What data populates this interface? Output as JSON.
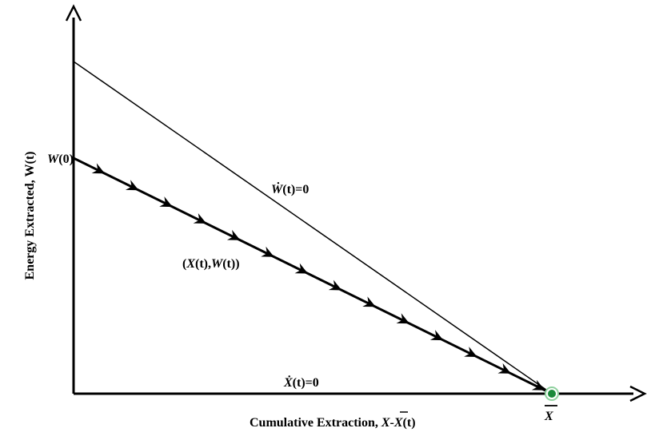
{
  "axes": {
    "x_label_prefix": "Cumulative Extraction, ",
    "x_label_xbar": "X",
    "x_label_dash": "-",
    "x_label_xt": "X",
    "x_label_suffix": "(t)",
    "y_label": "Energy Extracted, W(t)"
  },
  "labels": {
    "w0_var": "W",
    "w0_arg": "(0)",
    "wdot_var": "Ẇ",
    "wdot_rest": "(t)=0",
    "xdot_var": "Ẋ",
    "xdot_rest": "(t)=0",
    "path_open": "(",
    "path_x": "X",
    "path_mid": "(t),",
    "path_w": "W",
    "path_close": "(t))",
    "xbar": "X"
  },
  "colors": {
    "axis": "#000000",
    "endpoint_fill": "#1a8a3a",
    "endpoint_ring": "#8fd19e"
  }
}
